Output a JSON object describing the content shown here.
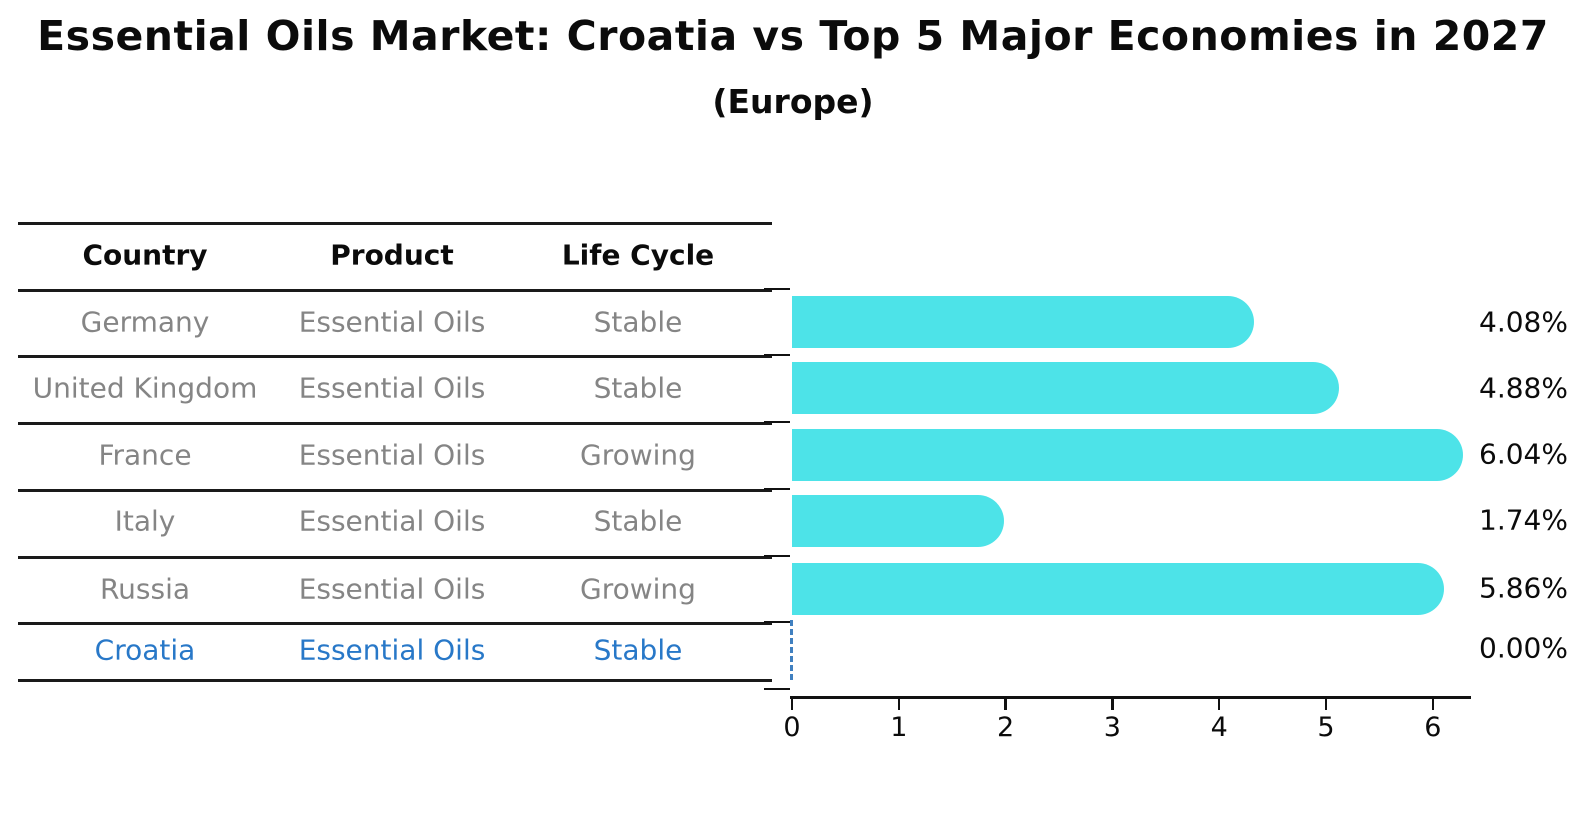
{
  "title": "Essential Oils Market: Croatia vs Top 5 Major Economies in 2027",
  "subtitle": "(Europe)",
  "table": {
    "headers": [
      "Country",
      "Product",
      "Life Cycle"
    ],
    "rows": [
      {
        "country": "Germany",
        "product": "Essential Oils",
        "life_cycle": "Stable",
        "highlight": false
      },
      {
        "country": "United Kingdom",
        "product": "Essential Oils",
        "life_cycle": "Stable",
        "highlight": false
      },
      {
        "country": "France",
        "product": "Essential Oils",
        "life_cycle": "Growing",
        "highlight": false
      },
      {
        "country": "Italy",
        "product": "Essential Oils",
        "life_cycle": "Stable",
        "highlight": false
      },
      {
        "country": "Russia",
        "product": "Essential Oils",
        "life_cycle": "Growing",
        "highlight": false
      },
      {
        "country": "Croatia",
        "product": "Essential Oils",
        "life_cycle": "Stable",
        "highlight": true
      }
    ]
  },
  "chart_data": {
    "type": "bar",
    "orientation": "horizontal",
    "categories": [
      "Germany",
      "United Kingdom",
      "France",
      "Italy",
      "Russia",
      "Croatia"
    ],
    "values": [
      4.08,
      4.88,
      6.04,
      1.74,
      5.86,
      0.0
    ],
    "value_labels": [
      "4.08%",
      "4.88%",
      "6.04%",
      "1.74%",
      "5.86%",
      "0.00%"
    ],
    "xticks": [
      "0",
      "1",
      "2",
      "3",
      "4",
      "5",
      "6"
    ],
    "xlim": [
      0,
      6.35
    ],
    "grid": false,
    "legend": false,
    "zero_value_marker": "dashed-vertical-line"
  },
  "colors": {
    "bar": "#4DE3E8",
    "highlight_text": "#2878C8",
    "zero_marker": "#4080C0",
    "row_text": "#858585",
    "header_text": "#0b0b0b",
    "axis": "#111111"
  }
}
